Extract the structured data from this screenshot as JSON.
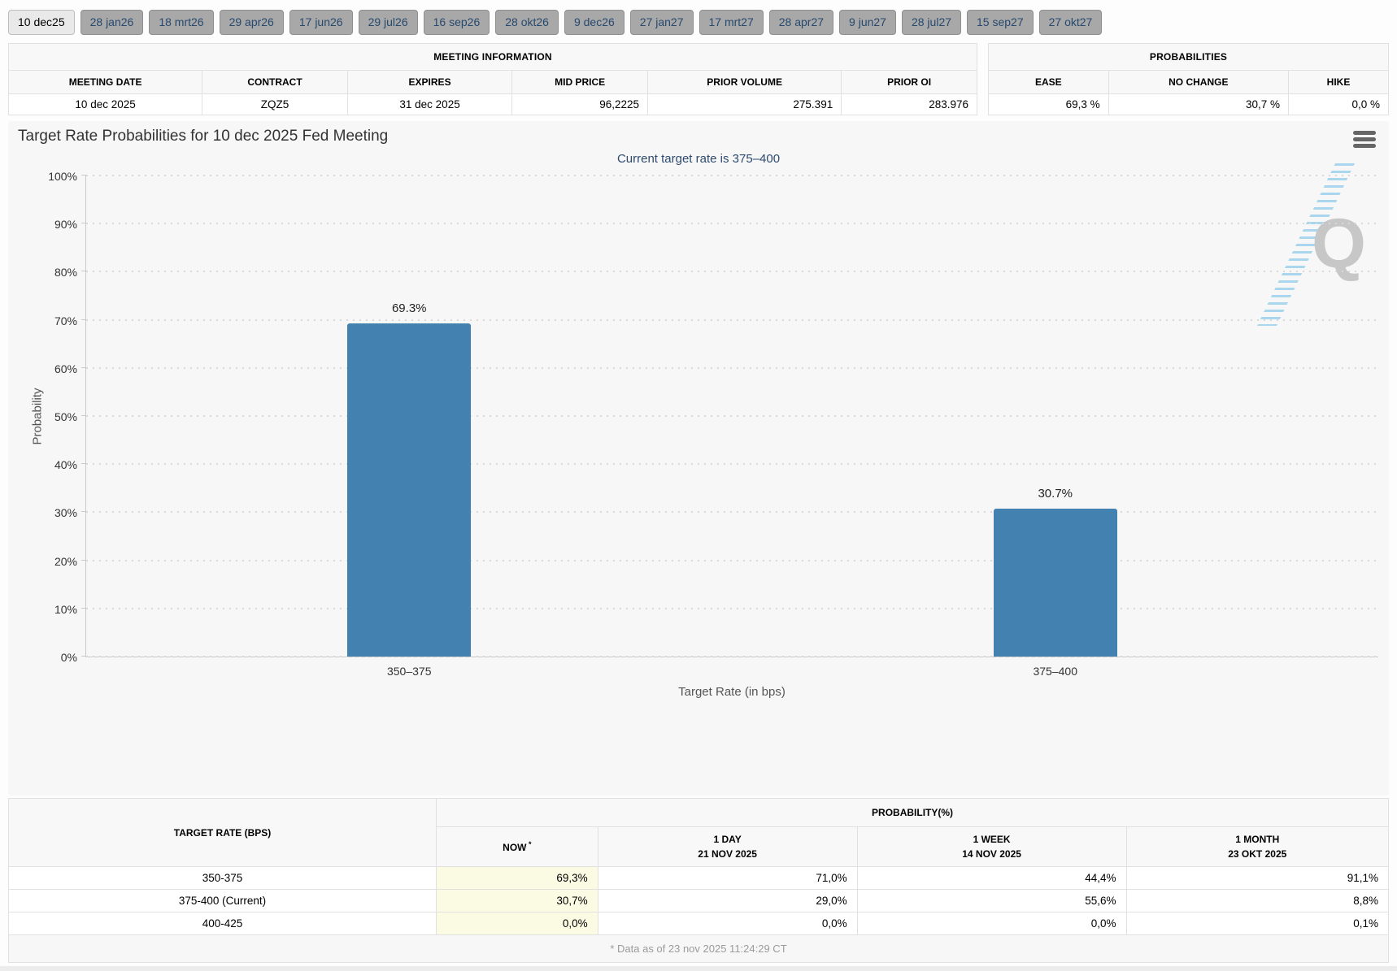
{
  "colors": {
    "bar": "#4382b0",
    "panel_bg": "#f7f7f7",
    "now_highlight": "#fbfbe3",
    "tab_active_bg": "#e9e9e9",
    "tab_inactive_bg": "#a8a8a8",
    "tab_text": "#27496d",
    "subtitle_text": "#2d4a6e",
    "watermark_gray": "#c7c7c7",
    "watermark_stripes_blue": "#96cdeb"
  },
  "icons": {
    "chart_menu": "hamburger",
    "watermark": "Q-logo-with-diagonal-stripes"
  },
  "tabs": [
    {
      "label": "10 dec25",
      "active": true
    },
    {
      "label": "28 jan26",
      "active": false
    },
    {
      "label": "18 mrt26",
      "active": false
    },
    {
      "label": "29 apr26",
      "active": false
    },
    {
      "label": "17 jun26",
      "active": false
    },
    {
      "label": "29 jul26",
      "active": false
    },
    {
      "label": "16 sep26",
      "active": false
    },
    {
      "label": "28 okt26",
      "active": false
    },
    {
      "label": "9 dec26",
      "active": false
    },
    {
      "label": "27 jan27",
      "active": false
    },
    {
      "label": "17 mrt27",
      "active": false
    },
    {
      "label": "28 apr27",
      "active": false
    },
    {
      "label": "9 jun27",
      "active": false
    },
    {
      "label": "28 jul27",
      "active": false
    },
    {
      "label": "15 sep27",
      "active": false
    },
    {
      "label": "27 okt27",
      "active": false
    }
  ],
  "meeting_info": {
    "title": "MEETING INFORMATION",
    "columns": [
      "MEETING DATE",
      "CONTRACT",
      "EXPIRES",
      "MID PRICE",
      "PRIOR VOLUME",
      "PRIOR OI"
    ],
    "row": [
      "10 dec 2025",
      "ZQZ5",
      "31 dec 2025",
      "96,2225",
      "275.391",
      "283.976"
    ],
    "numeric_from_index": 3
  },
  "probabilities": {
    "title": "PROBABILITIES",
    "columns": [
      "EASE",
      "NO CHANGE",
      "HIKE"
    ],
    "row": [
      "69,3 %",
      "30,7 %",
      "0,0 %"
    ]
  },
  "chart_data": {
    "type": "bar",
    "title": "Target Rate Probabilities for 10 dec 2025 Fed Meeting",
    "subtitle": "Current target rate is 375–400",
    "categories": [
      "350–375",
      "375–400"
    ],
    "values": [
      69.3,
      30.7
    ],
    "value_labels": [
      "69.3%",
      "30.7%"
    ],
    "xlabel": "Target Rate (in bps)",
    "ylabel": "Probability",
    "ylim": [
      0,
      100
    ],
    "ytick_step": 10,
    "ytick_suffix": "%",
    "grid": "dotted horizontal gridlines",
    "legend": "none",
    "bar_color": "#4382b0",
    "watermark": "Q"
  },
  "rate_table": {
    "col1_header": "TARGET RATE (BPS)",
    "group_header": "PROBABILITY(%)",
    "sub_headers": [
      {
        "label": "NOW",
        "sup": "*",
        "date": ""
      },
      {
        "label": "1 DAY",
        "date": "21 NOV 2025"
      },
      {
        "label": "1 WEEK",
        "date": "14 NOV 2025"
      },
      {
        "label": "1 MONTH",
        "date": "23 OKT 2025"
      }
    ],
    "rows": [
      {
        "rate": "350-375",
        "now": "69,3%",
        "day": "71,0%",
        "week": "44,4%",
        "month": "91,1%"
      },
      {
        "rate": "375-400 (Current)",
        "now": "30,7%",
        "day": "29,0%",
        "week": "55,6%",
        "month": "8,8%"
      },
      {
        "rate": "400-425",
        "now": "0,0%",
        "day": "0,0%",
        "week": "0,0%",
        "month": "0,1%"
      }
    ],
    "footnote": "* Data as of 23 nov 2025 11:24:29 CT"
  }
}
